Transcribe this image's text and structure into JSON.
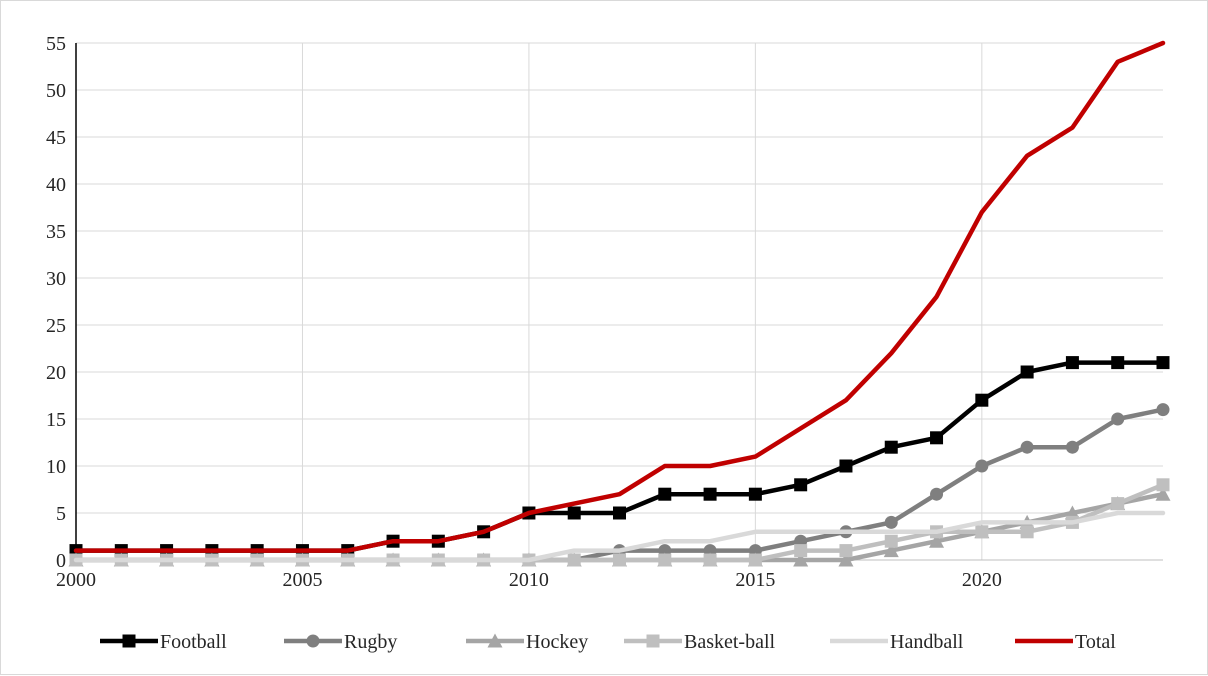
{
  "chart_data": {
    "type": "line",
    "title": "",
    "xlabel": "",
    "ylabel": "",
    "xlim": [
      2000,
      2024
    ],
    "ylim": [
      0,
      55
    ],
    "x_ticks": [
      "2000",
      "2005",
      "2010",
      "2015",
      "2020"
    ],
    "y_ticks": [
      "0",
      "5",
      "10",
      "15",
      "20",
      "25",
      "30",
      "35",
      "40",
      "45",
      "50",
      "55"
    ],
    "grid": "vertical and horizontal",
    "legend_position": "bottom",
    "x": [
      2000,
      2001,
      2002,
      2003,
      2004,
      2005,
      2006,
      2007,
      2008,
      2009,
      2010,
      2011,
      2012,
      2013,
      2014,
      2015,
      2016,
      2017,
      2018,
      2019,
      2020,
      2021,
      2022,
      2023,
      2024
    ],
    "series": [
      {
        "name": "Football",
        "color": "#000000",
        "marker": "square",
        "values": [
          1,
          1,
          1,
          1,
          1,
          1,
          1,
          2,
          2,
          3,
          5,
          5,
          5,
          7,
          7,
          7,
          8,
          10,
          12,
          13,
          17,
          20,
          21,
          21,
          21
        ]
      },
      {
        "name": "Rugby",
        "color": "#7f7f7f",
        "marker": "circle",
        "values": [
          0,
          0,
          0,
          0,
          0,
          0,
          0,
          0,
          0,
          0,
          0,
          0,
          1,
          1,
          1,
          1,
          2,
          3,
          4,
          7,
          10,
          12,
          12,
          15,
          16
        ]
      },
      {
        "name": "Hockey",
        "color": "#a5a5a5",
        "marker": "triangle",
        "values": [
          0,
          0,
          0,
          0,
          0,
          0,
          0,
          0,
          0,
          0,
          0,
          0,
          0,
          0,
          0,
          0,
          0,
          0,
          1,
          2,
          3,
          4,
          5,
          6,
          7
        ]
      },
      {
        "name": "Basket-ball",
        "color": "#bfbfbf",
        "marker": "square",
        "values": [
          0,
          0,
          0,
          0,
          0,
          0,
          0,
          0,
          0,
          0,
          0,
          0,
          0,
          0,
          0,
          0,
          1,
          1,
          2,
          3,
          3,
          3,
          4,
          6,
          8
        ]
      },
      {
        "name": "Handball",
        "color": "#d9d9d9",
        "marker": "none",
        "values": [
          0,
          0,
          0,
          0,
          0,
          0,
          0,
          0,
          0,
          0,
          0,
          1,
          1,
          2,
          2,
          3,
          3,
          3,
          3,
          3,
          4,
          4,
          4,
          5,
          5
        ]
      },
      {
        "name": "Total",
        "color": "#c00000",
        "marker": "none",
        "values": [
          1,
          1,
          1,
          1,
          1,
          1,
          1,
          2,
          2,
          3,
          5,
          6,
          7,
          10,
          10,
          11,
          14,
          17,
          22,
          28,
          37,
          43,
          46,
          53,
          57
        ]
      }
    ]
  }
}
